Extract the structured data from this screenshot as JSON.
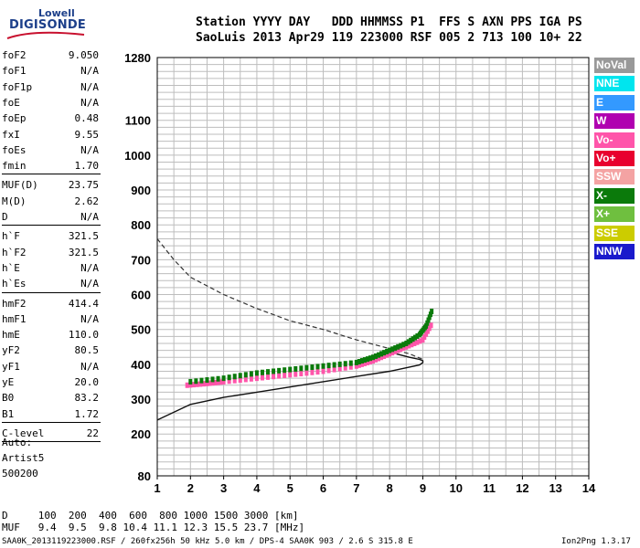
{
  "logo": {
    "line1": "Lowell",
    "line2": "DIGISONDE"
  },
  "header": {
    "labels": "Station YYYY DAY   DDD HHMMSS P1  FFS S AXN PPS IGA PS",
    "values": "SaoLuis 2013 Apr29 119 223000 RSF 005 2 713 100 10+ 22"
  },
  "params": {
    "group1": [
      {
        "name": "foF2",
        "value": "9.050"
      },
      {
        "name": "foF1",
        "value": "N/A"
      },
      {
        "name": "foF1p",
        "value": "N/A"
      },
      {
        "name": "foE",
        "value": "N/A"
      },
      {
        "name": "foEp",
        "value": "0.48"
      },
      {
        "name": "fxI",
        "value": "9.55"
      },
      {
        "name": "foEs",
        "value": "N/A"
      },
      {
        "name": "fmin",
        "value": "1.70"
      }
    ],
    "group2": [
      {
        "name": "MUF(D)",
        "value": "23.75"
      },
      {
        "name": "M(D)",
        "value": "2.62"
      },
      {
        "name": "D",
        "value": "N/A"
      }
    ],
    "group3": [
      {
        "name": "h`F",
        "value": "321.5"
      },
      {
        "name": "h`F2",
        "value": "321.5"
      },
      {
        "name": "h`E",
        "value": "N/A"
      },
      {
        "name": "h`Es",
        "value": "N/A"
      }
    ],
    "group4": [
      {
        "name": "hmF2",
        "value": "414.4"
      },
      {
        "name": "hmF1",
        "value": "N/A"
      },
      {
        "name": "hmE",
        "value": "110.0"
      },
      {
        "name": "yF2",
        "value": "80.5"
      },
      {
        "name": "yF1",
        "value": "N/A"
      },
      {
        "name": "yE",
        "value": "20.0"
      },
      {
        "name": "B0",
        "value": "83.2"
      },
      {
        "name": "B1",
        "value": "1.72"
      }
    ],
    "group5": [
      {
        "name": "C-level",
        "value": "22"
      }
    ]
  },
  "auto": {
    "label": "Auto:",
    "artist": "Artist5",
    "version": "500200"
  },
  "legend": [
    {
      "label": "NoVal",
      "color": "#999999"
    },
    {
      "label": "NNE",
      "color": "#00e5ee"
    },
    {
      "label": "E",
      "color": "#3399ff"
    },
    {
      "label": "W",
      "color": "#b000b0"
    },
    {
      "label": "Vo-",
      "color": "#ff55aa"
    },
    {
      "label": "Vo+",
      "color": "#e8002e"
    },
    {
      "label": "SSW",
      "color": "#f4a3a3"
    },
    {
      "label": "X-",
      "color": "#0b7a0b"
    },
    {
      "label": "X+",
      "color": "#6fbf3f"
    },
    {
      "label": "SSE",
      "color": "#cccc00"
    },
    {
      "label": "NNW",
      "color": "#1a1acc"
    }
  ],
  "footer": {
    "d_row": "D     100  200  400  600  800 1000 1500 3000 [km]",
    "muf_row": "MUF   9.4  9.5  9.8 10.4 11.1 12.3 15.5 23.7 [MHz]",
    "info": "SAA0K_2013119223000.RSF / 260fx256h 50 kHz 5.0 km / DPS-4 SAA0K 903 / 2.6 S 315.8 E",
    "program": "Ion2Png 1.3.17"
  },
  "chart_data": {
    "type": "scatter",
    "xlim": [
      1,
      14
    ],
    "ylim": [
      80,
      1280
    ],
    "x_ticks": [
      1,
      2,
      3,
      4,
      5,
      6,
      7,
      8,
      9,
      10,
      11,
      12,
      13,
      14
    ],
    "y_ticks": [
      80,
      200,
      300,
      400,
      500,
      600,
      700,
      800,
      900,
      1000,
      1100,
      1280
    ],
    "grid": true,
    "trace_x_mode": {
      "name": "X-",
      "color": "#0b7a0b",
      "x": [
        2.0,
        3.0,
        4.0,
        5.0,
        6.0,
        7.0,
        7.5,
        8.0,
        8.5,
        8.9,
        9.1,
        9.3
      ],
      "y": [
        350,
        360,
        375,
        385,
        395,
        405,
        420,
        440,
        460,
        485,
        510,
        560
      ]
    },
    "trace_o_mode": {
      "name": "Vo-",
      "color": "#ff55aa",
      "x": [
        1.9,
        2.5,
        3.0,
        4.0,
        5.0,
        6.0,
        7.0,
        7.5,
        8.0,
        8.5,
        9.0,
        9.3
      ],
      "y": [
        340,
        345,
        350,
        360,
        370,
        380,
        395,
        410,
        430,
        450,
        470,
        520
      ]
    },
    "profile_solid": {
      "x": [
        1.0,
        2.0,
        3.0,
        4.0,
        5.0,
        6.0,
        7.0,
        8.0,
        8.5,
        8.9,
        9.0,
        9.0,
        8.9,
        8.6,
        8.2
      ],
      "y": [
        240,
        285,
        305,
        320,
        335,
        350,
        365,
        380,
        390,
        398,
        405,
        410,
        414,
        420,
        430
      ]
    },
    "profile_dashed": {
      "x": [
        1.0,
        1.5,
        2.0,
        3.0,
        4.0,
        5.0,
        6.0,
        7.0,
        8.0,
        8.6,
        9.0
      ],
      "y": [
        760,
        700,
        650,
        600,
        560,
        525,
        500,
        470,
        445,
        430,
        414
      ]
    }
  }
}
